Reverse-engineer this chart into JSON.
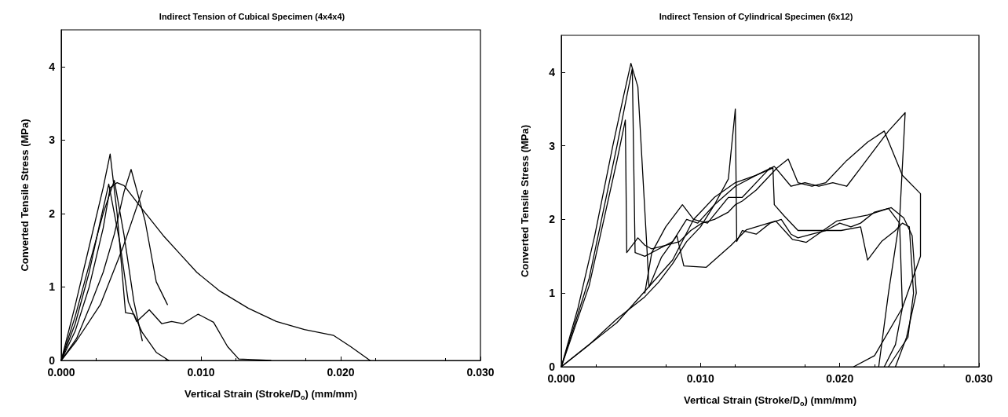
{
  "chart_data": [
    {
      "type": "line",
      "title": "Indirect Tension of Cubical Specimen (4x4x4)",
      "xlabel": "Vertical Strain (Stroke/D$_{o}$) (mm/mm)",
      "ylabel": "Converted Tensile Stress (MPa)",
      "xlim": [
        0,
        0.03
      ],
      "ylim": [
        0,
        4.5
      ],
      "xticks": [
        {
          "value": 0,
          "label": "0.000"
        },
        {
          "value": 0.01,
          "label": "0.010"
        },
        {
          "value": 0.02,
          "label": "0.020"
        },
        {
          "value": 0.03,
          "label": "0.030"
        }
      ],
      "yticks": [
        0,
        1,
        2,
        3,
        4
      ],
      "marker": "none",
      "series": [
        {
          "color": "#000000",
          "x": [
            0,
            0.001,
            0.002,
            0.003,
            0.0035,
            0.004,
            0.0045,
            0.0058,
            0.0073,
            0.0085,
            0.0097,
            0.0113,
            0.0134,
            0.0154,
            0.0174,
            0.0195,
            0.0207,
            0.0221
          ],
          "values": [
            0,
            0.4,
            1.0,
            1.8,
            2.35,
            2.42,
            2.38,
            2.06,
            1.7,
            1.45,
            1.2,
            0.95,
            0.71,
            0.53,
            0.42,
            0.34,
            0.19,
            0
          ]
        },
        {
          "color": "#000000",
          "x": [
            0,
            0.001,
            0.002,
            0.003,
            0.0035,
            0.004,
            0.0046,
            0.0052,
            0.0058,
            0.0068,
            0.0077
          ],
          "values": [
            0,
            0.75,
            1.55,
            2.35,
            2.81,
            2.0,
            0.65,
            0.63,
            0.38,
            0.11,
            0
          ]
        },
        {
          "color": "#000000",
          "x": [
            0,
            0.001,
            0.002,
            0.003,
            0.0038,
            0.0045,
            0.0052,
            0.0058
          ],
          "values": [
            0,
            0.6,
            1.3,
            2.0,
            2.45,
            1.7,
            0.8,
            0.27
          ]
        },
        {
          "color": "#000000",
          "x": [
            0,
            0.0011,
            0.0021,
            0.003,
            0.0038,
            0.0045,
            0.005,
            0.006,
            0.0068,
            0.0076
          ],
          "values": [
            0,
            0.3,
            0.76,
            1.2,
            1.72,
            2.3,
            2.6,
            1.9,
            1.07,
            0.76
          ]
        },
        {
          "color": "#000000",
          "x": [
            0,
            0.0011,
            0.0028,
            0.0044,
            0.0058
          ],
          "values": [
            0,
            0.27,
            0.76,
            1.53,
            2.31
          ]
        },
        {
          "color": "#000000",
          "x": [
            0,
            0.001,
            0.002,
            0.0028,
            0.0034,
            0.0042,
            0.0048,
            0.0054,
            0.0063,
            0.0072,
            0.0079,
            0.0087,
            0.0098,
            0.0109,
            0.0119,
            0.0127,
            0.015
          ],
          "values": [
            0,
            0.5,
            1.2,
            1.9,
            2.4,
            1.6,
            0.8,
            0.53,
            0.69,
            0.5,
            0.53,
            0.5,
            0.63,
            0.52,
            0.19,
            0.02,
            0
          ]
        }
      ]
    },
    {
      "type": "line",
      "title": "Indirect Tension of Cylindrical Specimen (6x12)",
      "xlabel": "Vertical Strain (Stroke/D$_{o}$) (mm/mm)",
      "ylabel": "Converted Tensile Stress (MPa)",
      "xlim": [
        0,
        0.03
      ],
      "ylim": [
        0,
        4.5
      ],
      "xticks": [
        {
          "value": 0,
          "label": "0.000"
        },
        {
          "value": 0.01,
          "label": "0.010"
        },
        {
          "value": 0.02,
          "label": "0.020"
        },
        {
          "value": 0.03,
          "label": "0.030"
        }
      ],
      "yticks": [
        0,
        1,
        2,
        3,
        4
      ],
      "marker": "none",
      "series": [
        {
          "color": "#000000",
          "x": [
            0,
            0.0012,
            0.0024,
            0.0037,
            0.0045,
            0.005,
            0.0055,
            0.0061,
            0.0063,
            0.0072,
            0.0083,
            0.0088,
            0.0104,
            0.0122,
            0.0133,
            0.0154,
            0.0166,
            0.0176,
            0.0198,
            0.022,
            0.0237,
            0.0246,
            0.0252,
            0.0255,
            0.0248,
            0.024
          ],
          "values": [
            0,
            0.8,
            1.78,
            3.0,
            3.7,
            4.12,
            3.8,
            1.78,
            1.08,
            1.49,
            1.78,
            1.37,
            1.35,
            1.65,
            1.86,
            1.98,
            1.73,
            1.69,
            1.98,
            2.06,
            2.16,
            2.02,
            1.78,
            1.0,
            0.4,
            0
          ]
        },
        {
          "color": "#000000",
          "x": [
            0,
            0.002,
            0.004,
            0.0051,
            0.0053,
            0.006,
            0.007,
            0.008,
            0.009,
            0.0098,
            0.011,
            0.0125,
            0.014,
            0.0152,
            0.0153,
            0.016,
            0.017,
            0.018,
            0.0191,
            0.0201,
            0.0215,
            0.022,
            0.023,
            0.024,
            0.0245,
            0.025,
            0.0253,
            0.0249,
            0.0235
          ],
          "values": [
            0,
            1.2,
            3.0,
            4.05,
            1.55,
            1.5,
            1.6,
            1.7,
            2.0,
            1.95,
            2.2,
            2.45,
            2.6,
            2.7,
            2.2,
            2.05,
            1.85,
            1.85,
            1.85,
            1.85,
            1.9,
            1.45,
            1.7,
            1.85,
            1.95,
            1.9,
            1.0,
            0.4,
            0
          ]
        },
        {
          "color": "#000000",
          "x": [
            0,
            0.002,
            0.004,
            0.0046,
            0.0047,
            0.0055,
            0.006,
            0.0065,
            0.0075,
            0.0085,
            0.0093,
            0.0101,
            0.011,
            0.012,
            0.0125,
            0.013,
            0.014,
            0.0155,
            0.0163,
            0.017,
            0.018,
            0.019,
            0.0205,
            0.022,
            0.0232,
            0.0245,
            0.0258,
            0.0258,
            0.0245,
            0.0225,
            0.021
          ],
          "values": [
            0,
            1.1,
            2.8,
            3.35,
            1.55,
            1.75,
            1.65,
            1.6,
            1.65,
            1.7,
            1.85,
            1.95,
            2.0,
            2.1,
            2.2,
            2.25,
            2.4,
            2.7,
            2.82,
            2.5,
            2.45,
            2.5,
            2.8,
            3.05,
            3.2,
            2.6,
            2.35,
            1.5,
            0.8,
            0.15,
            0
          ]
        },
        {
          "color": "#000000",
          "x": [
            0,
            0.002,
            0.004,
            0.006,
            0.007,
            0.008,
            0.009,
            0.01,
            0.011,
            0.012,
            0.0125,
            0.0126,
            0.013,
            0.014,
            0.015,
            0.0158,
            0.0165,
            0.017,
            0.018,
            0.019,
            0.02,
            0.0208,
            0.0215,
            0.0225,
            0.0235,
            0.0243,
            0.0245,
            0.024,
            0.0232
          ],
          "values": [
            0,
            0.3,
            0.65,
            0.95,
            1.15,
            1.4,
            1.7,
            1.9,
            2.2,
            2.55,
            3.5,
            1.7,
            1.85,
            1.8,
            1.95,
            2.0,
            1.8,
            1.75,
            1.8,
            1.85,
            1.95,
            1.9,
            1.95,
            2.1,
            2.15,
            1.95,
            0.8,
            0.3,
            0
          ]
        },
        {
          "color": "#000000",
          "x": [
            0,
            0.004,
            0.008,
            0.0095,
            0.011,
            0.0125,
            0.014,
            0.0153,
            0.0165,
            0.0175,
            0.0185,
            0.0195,
            0.0205,
            0.0215,
            0.0225,
            0.0235,
            0.0247,
            0.0243,
            0.0235,
            0.0228
          ],
          "values": [
            0,
            0.6,
            1.45,
            2.0,
            2.3,
            2.5,
            2.6,
            2.72,
            2.45,
            2.5,
            2.45,
            2.5,
            2.45,
            2.7,
            2.95,
            3.2,
            3.45,
            2.0,
            1.0,
            0
          ]
        },
        {
          "color": "#000000",
          "x": [
            0.006,
            0.0065,
            0.0075,
            0.0087,
            0.0095,
            0.0105,
            0.012,
            0.013,
            0.0145,
            0.015
          ],
          "values": [
            1.0,
            1.55,
            1.9,
            2.2,
            2.0,
            1.95,
            2.3,
            2.3,
            2.6,
            2.7
          ]
        }
      ]
    }
  ]
}
